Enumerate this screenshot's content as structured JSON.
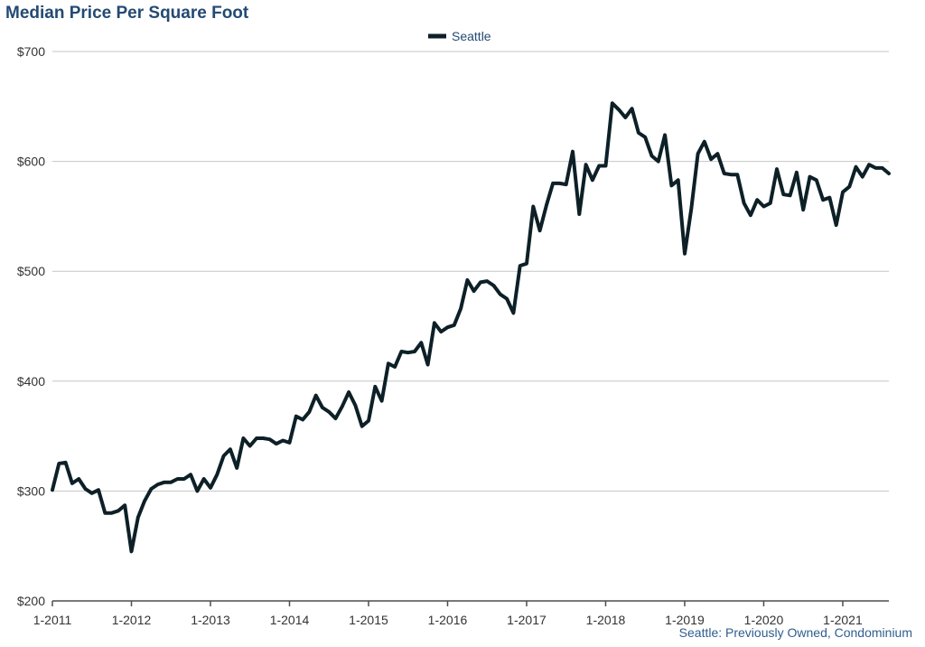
{
  "chart_data": {
    "type": "line",
    "title": "Median Price Per Square Foot",
    "xlabel": "",
    "ylabel": "",
    "ylim": [
      200,
      700
    ],
    "yticks": [
      200,
      300,
      400,
      500,
      600,
      700
    ],
    "ytick_labels": [
      "$200",
      "$300",
      "$400",
      "$500",
      "$600",
      "$700"
    ],
    "xlim": [
      "2011-01",
      "2021-08"
    ],
    "xticks": [
      "2011-01",
      "2012-01",
      "2013-01",
      "2014-01",
      "2015-01",
      "2016-01",
      "2017-01",
      "2018-01",
      "2019-01",
      "2020-01",
      "2021-01"
    ],
    "xtick_labels": [
      "1-2011",
      "1-2012",
      "1-2013",
      "1-2014",
      "1-2015",
      "1-2016",
      "1-2017",
      "1-2018",
      "1-2019",
      "1-2020",
      "1-2021"
    ],
    "grid": true,
    "legend_position": "top-center",
    "series": [
      {
        "name": "Seattle",
        "color": "#0d2027",
        "x": [
          "2011-01",
          "2011-02",
          "2011-03",
          "2011-04",
          "2011-05",
          "2011-06",
          "2011-07",
          "2011-08",
          "2011-09",
          "2011-10",
          "2011-11",
          "2011-12",
          "2012-01",
          "2012-02",
          "2012-03",
          "2012-04",
          "2012-05",
          "2012-06",
          "2012-07",
          "2012-08",
          "2012-09",
          "2012-10",
          "2012-11",
          "2012-12",
          "2013-01",
          "2013-02",
          "2013-03",
          "2013-04",
          "2013-05",
          "2013-06",
          "2013-07",
          "2013-08",
          "2013-09",
          "2013-10",
          "2013-11",
          "2013-12",
          "2014-01",
          "2014-02",
          "2014-03",
          "2014-04",
          "2014-05",
          "2014-06",
          "2014-07",
          "2014-08",
          "2014-09",
          "2014-10",
          "2014-11",
          "2014-12",
          "2015-01",
          "2015-02",
          "2015-03",
          "2015-04",
          "2015-05",
          "2015-06",
          "2015-07",
          "2015-08",
          "2015-09",
          "2015-10",
          "2015-11",
          "2015-12",
          "2016-01",
          "2016-02",
          "2016-03",
          "2016-04",
          "2016-05",
          "2016-06",
          "2016-07",
          "2016-08",
          "2016-09",
          "2016-10",
          "2016-11",
          "2016-12",
          "2017-01",
          "2017-02",
          "2017-03",
          "2017-04",
          "2017-05",
          "2017-06",
          "2017-07",
          "2017-08",
          "2017-09",
          "2017-10",
          "2017-11",
          "2017-12",
          "2018-01",
          "2018-02",
          "2018-03",
          "2018-04",
          "2018-05",
          "2018-06",
          "2018-07",
          "2018-08",
          "2018-09",
          "2018-10",
          "2018-11",
          "2018-12",
          "2019-01",
          "2019-02",
          "2019-03",
          "2019-04",
          "2019-05",
          "2019-06",
          "2019-07",
          "2019-08",
          "2019-09",
          "2019-10",
          "2019-11",
          "2019-12",
          "2020-01",
          "2020-02",
          "2020-03",
          "2020-04",
          "2020-05",
          "2020-06",
          "2020-07",
          "2020-08",
          "2020-09",
          "2020-10",
          "2020-11",
          "2020-12",
          "2021-01",
          "2021-02",
          "2021-03",
          "2021-04",
          "2021-05",
          "2021-06",
          "2021-07",
          "2021-08"
        ],
        "values": [
          301,
          325,
          326,
          307,
          311,
          302,
          298,
          301,
          280,
          280,
          282,
          287,
          245,
          276,
          291,
          302,
          306,
          308,
          308,
          311,
          311,
          315,
          300,
          311,
          303,
          315,
          332,
          338,
          321,
          348,
          341,
          348,
          348,
          347,
          343,
          346,
          344,
          368,
          365,
          372,
          387,
          376,
          372,
          366,
          377,
          390,
          378,
          359,
          364,
          395,
          382,
          416,
          413,
          427,
          426,
          427,
          435,
          415,
          453,
          445,
          449,
          451,
          466,
          492,
          482,
          490,
          491,
          487,
          479,
          475,
          462,
          505,
          507,
          559,
          537,
          560,
          580,
          580,
          579,
          609,
          552,
          597,
          583,
          596,
          596,
          653,
          647,
          640,
          648,
          626,
          622,
          605,
          600,
          624,
          578,
          583,
          516,
          557,
          607,
          618,
          602,
          607,
          589,
          588,
          588,
          562,
          551,
          565,
          559,
          562,
          593,
          570,
          569,
          590,
          556,
          586,
          583,
          565,
          567,
          542,
          572,
          577,
          595,
          586,
          597,
          594,
          594,
          589
        ]
      }
    ]
  },
  "footnote": "Seattle: Previously Owned, Condominium"
}
